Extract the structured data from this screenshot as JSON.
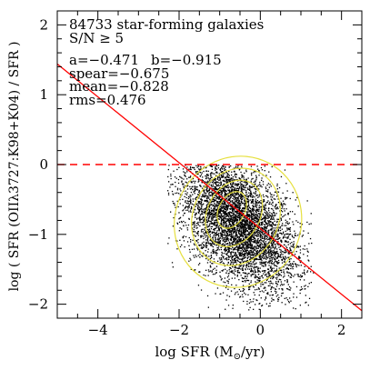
{
  "chart_data": {
    "type": "scatter",
    "title": "84733 star-forming galaxies",
    "subtitle": "S/N ≥ 5",
    "annotations": {
      "a": "a=−0.471",
      "b": "b=−0.915",
      "spear": "spear=−0.675",
      "mean": "mean=−0.828",
      "rms": "rms=0.476"
    },
    "xlabel_main": "log SFR (M",
    "xlabel_sun": "⊙",
    "xlabel_end": "/yr)",
    "ylabel": "log ( SFR (OIIλ3727:K98+K04) / SFR )",
    "xlim": [
      -5,
      2.5
    ],
    "ylim": [
      -2.2,
      2.2
    ],
    "xticks": [
      -4,
      -2,
      0,
      2
    ],
    "xtick_labels": [
      "−4",
      "−2",
      "0",
      "2"
    ],
    "yticks": [
      -2,
      -1,
      0,
      1,
      2
    ],
    "ytick_labels": [
      "−2",
      "−1",
      "0",
      "1",
      "2"
    ],
    "grid": false,
    "cloud": {
      "n_points_drawn": 5000,
      "center": [
        -0.55,
        -0.85
      ],
      "x_range": [
        -2.3,
        1.3
      ],
      "y_range": [
        -2.1,
        0.0
      ],
      "color": "#000000"
    },
    "contours": {
      "color": "#e6e040",
      "levels": [
        {
          "cx": -0.55,
          "cy": -0.82,
          "rx": 1.55,
          "ry": 0.95
        },
        {
          "cx": -0.6,
          "cy": -0.75,
          "rx": 1.05,
          "ry": 0.72
        },
        {
          "cx": -0.65,
          "cy": -0.7,
          "rx": 0.65,
          "ry": 0.5
        },
        {
          "cx": -0.7,
          "cy": -0.65,
          "rx": 0.32,
          "ry": 0.28
        }
      ]
    },
    "fit_line": {
      "slope": -0.471,
      "intercept": -0.915,
      "color": "#ff0000",
      "style": "solid"
    },
    "zero_line": {
      "y": 0,
      "color": "#ff0000",
      "style": "dashed"
    }
  }
}
